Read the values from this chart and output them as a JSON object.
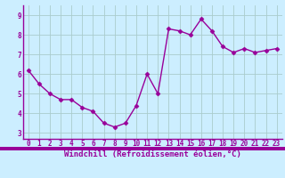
{
  "x": [
    0,
    1,
    2,
    3,
    4,
    5,
    6,
    7,
    8,
    9,
    10,
    11,
    12,
    13,
    14,
    15,
    16,
    17,
    18,
    19,
    20,
    21,
    22,
    23
  ],
  "y": [
    6.2,
    5.5,
    5.0,
    4.7,
    4.7,
    4.3,
    4.1,
    3.5,
    3.3,
    3.5,
    4.4,
    6.0,
    5.0,
    8.3,
    8.2,
    8.0,
    8.8,
    8.2,
    7.4,
    7.1,
    7.3,
    7.1,
    7.2,
    7.3
  ],
  "line_color": "#990099",
  "marker": "D",
  "marker_size": 2.5,
  "line_width": 1.0,
  "bg_color": "#cceeff",
  "grid_color": "#aacccc",
  "xlabel": "Windchill (Refroidissement éolien,°C)",
  "xlim": [
    -0.5,
    23.5
  ],
  "ylim": [
    2.7,
    9.5
  ],
  "yticks": [
    3,
    4,
    5,
    6,
    7,
    8,
    9
  ],
  "xticks": [
    0,
    1,
    2,
    3,
    4,
    5,
    6,
    7,
    8,
    9,
    10,
    11,
    12,
    13,
    14,
    15,
    16,
    17,
    18,
    19,
    20,
    21,
    22,
    23
  ],
  "tick_fontsize": 5.5,
  "xlabel_fontsize": 6.5,
  "label_color": "#990099",
  "spine_color": "#990099",
  "xaxis_bar_color": "#990099",
  "xaxis_bar_height": 0.012
}
